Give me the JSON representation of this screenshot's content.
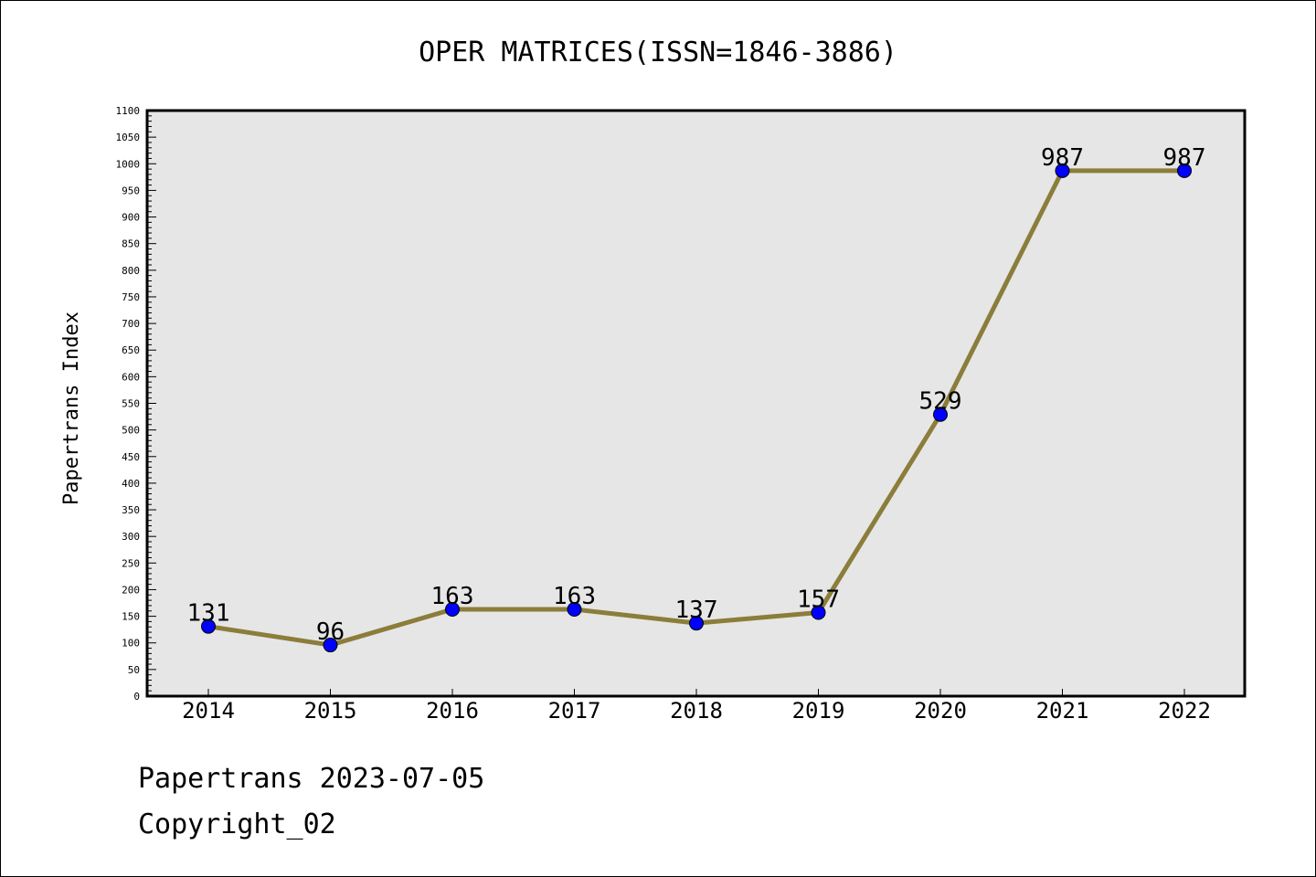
{
  "chart_data": {
    "type": "line",
    "title": "OPER MATRICES(ISSN=1846-3886)",
    "xlabel": "",
    "ylabel": "Papertrans Index",
    "categories": [
      "2014",
      "2015",
      "2016",
      "2017",
      "2018",
      "2019",
      "2020",
      "2021",
      "2022"
    ],
    "series": [
      {
        "values": [
          131,
          96,
          163,
          163,
          137,
          157,
          529,
          987,
          987
        ],
        "line_color": "#8B7D3A",
        "marker_color": "#0000FF"
      }
    ],
    "data_labels": [
      "131",
      "96",
      "163",
      "163",
      "137",
      "157",
      "529",
      "987",
      "987"
    ],
    "ylim": [
      0,
      1100
    ],
    "yticks": [
      0,
      50,
      100,
      150,
      200,
      250,
      300,
      350,
      400,
      450,
      500,
      550,
      600,
      650,
      700,
      750,
      800,
      850,
      900,
      950,
      1000,
      1050,
      1100
    ],
    "plot_background": "#E6E6E6",
    "grid": false,
    "legend": "none"
  },
  "footer": {
    "line1": "Papertrans 2023-07-05",
    "line2": "Copyright_02"
  }
}
